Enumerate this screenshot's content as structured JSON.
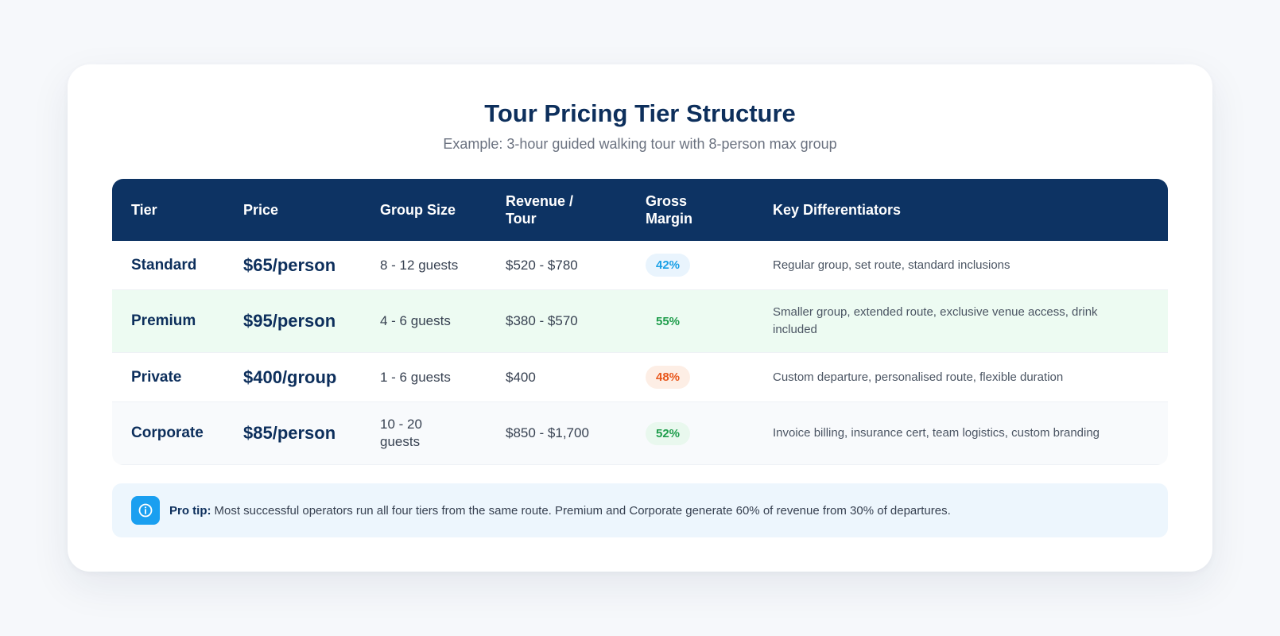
{
  "header": {
    "title": "Tour Pricing Tier Structure",
    "subtitle": "Example: 3-hour guided walking tour with 8-person max group"
  },
  "table": {
    "columns": [
      "Tier",
      "Price",
      "Group Size",
      "Revenue / Tour",
      "Gross Margin",
      "Key Differentiators"
    ],
    "column_lines": {
      "revenue": [
        "Revenue /",
        "Tour"
      ],
      "margin": [
        "Gross",
        "Margin"
      ]
    },
    "rows": [
      {
        "tier": "Standard",
        "price": "$65/person",
        "group_size": "8 - 12 guests",
        "revenue": "$520 - $780",
        "margin": "42%",
        "differentiators": "Regular group, set route, standard inclusions"
      },
      {
        "tier": "Premium",
        "price": "$95/person",
        "group_size": "4 - 6 guests",
        "revenue": "$380 - $570",
        "margin": "55%",
        "differentiators": "Smaller group, extended route, exclusive venue access, drink included"
      },
      {
        "tier": "Private",
        "price": "$400/group",
        "group_size": "1 - 6 guests",
        "revenue": "$400",
        "margin": "48%",
        "differentiators": "Custom departure, personalised route, flexible duration"
      },
      {
        "tier": "Corporate",
        "price": "$85/person",
        "group_size": "10 - 20 guests",
        "revenue": "$850 - $1,700",
        "margin": "52%",
        "differentiators": "Invoice billing, insurance cert, team logistics, custom branding"
      }
    ]
  },
  "tip": {
    "label": "Pro tip:",
    "text": "Most successful operators run all four tiers from the same route. Premium and Corporate generate 60% of revenue from 30% of departures.",
    "icon": "info-icon"
  },
  "colors": {
    "header_bg": "#0d3363",
    "accent_blue": "#1aa0e6",
    "accent_green": "#1f9d4c",
    "accent_orange": "#e8571c",
    "premium_row_bg": "#edfbf2"
  }
}
